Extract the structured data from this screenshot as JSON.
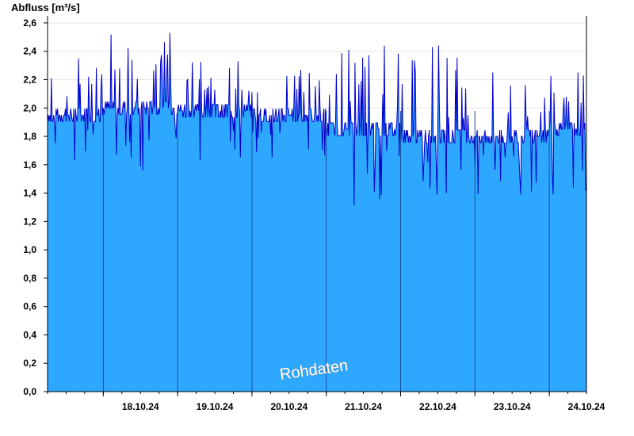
{
  "chart_data": {
    "type": "area",
    "title": "",
    "ylabel": "Abfluss [m³/s]",
    "xlabel": "",
    "ylim": [
      0,
      2.65
    ],
    "yticks": [
      "0,0",
      "0,2",
      "0,4",
      "0,6",
      "0,8",
      "1,0",
      "1,2",
      "1,4",
      "1,6",
      "1,8",
      "2,0",
      "2,2",
      "2,4",
      "2,6"
    ],
    "ytick_values": [
      0,
      0.2,
      0.4,
      0.6,
      0.8,
      1.0,
      1.2,
      1.4,
      1.6,
      1.8,
      2.0,
      2.2,
      2.4,
      2.6
    ],
    "x_range_days": [
      "17.10.24 06:00",
      "24.10.24 12:00"
    ],
    "xtick_labels": [
      "18.10.24",
      "19.10.24",
      "20.10.24",
      "21.10.24",
      "22.10.24",
      "23.10.24",
      "24.10.24"
    ],
    "day_boundaries": [
      "18.10.24 00:00",
      "19.10.24 00:00",
      "20.10.24 00:00",
      "21.10.24 00:00",
      "22.10.24 00:00",
      "23.10.24 00:00",
      "24.10.24 00:00"
    ],
    "series": [
      {
        "fill_color": "#2ea8ff",
        "line_color": "#0000cc",
        "daily": [
          {
            "day": "17.10.24 (from 06:00)",
            "base": 1.95,
            "low": 1.63,
            "high": 2.35
          },
          {
            "day": "18.10.24",
            "base": 2.0,
            "low": 1.56,
            "high": 2.53
          },
          {
            "day": "19.10.24",
            "base": 1.98,
            "low": 1.63,
            "high": 2.33
          },
          {
            "day": "20.10.24",
            "base": 1.95,
            "low": 1.65,
            "high": 2.27
          },
          {
            "day": "21.10.24",
            "base": 1.85,
            "low": 1.31,
            "high": 2.44
          },
          {
            "day": "22.10.24",
            "base": 1.8,
            "low": 1.39,
            "high": 2.44
          },
          {
            "day": "23.10.24",
            "base": 1.8,
            "low": 1.39,
            "high": 2.25
          },
          {
            "day": "24.10.24 (to 12:00)",
            "base": 1.85,
            "low": 1.39,
            "high": 2.25
          }
        ]
      }
    ],
    "watermark": "Rohdaten",
    "grid": {
      "horizontal": true,
      "vertical": false
    }
  }
}
